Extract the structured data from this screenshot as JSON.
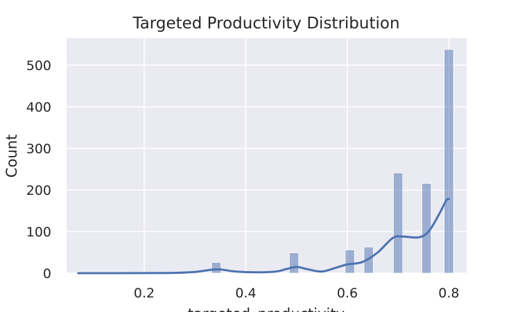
{
  "chart_data": {
    "type": "histogram",
    "title": "Targeted Productivity Distribution",
    "xlabel": "targeted_productivity",
    "ylabel": "Count",
    "xlim": [
      0.047,
      0.835
    ],
    "ylim": [
      0,
      565
    ],
    "xticks": [
      0.2,
      0.4,
      0.6,
      0.8
    ],
    "xtick_labels": [
      "0.2",
      "0.4",
      "0.6",
      "0.8"
    ],
    "yticks": [
      0,
      100,
      200,
      300,
      400,
      500
    ],
    "ytick_labels": [
      "0",
      "100",
      "200",
      "300",
      "400",
      "500"
    ],
    "grid": true,
    "bin_width": 0.0183,
    "bins": [
      {
        "x": 0.342,
        "count": 26
      },
      {
        "x": 0.495,
        "count": 49
      },
      {
        "x": 0.605,
        "count": 56
      },
      {
        "x": 0.642,
        "count": 63
      },
      {
        "x": 0.7,
        "count": 241
      },
      {
        "x": 0.756,
        "count": 216
      },
      {
        "x": 0.8,
        "count": 538
      }
    ],
    "kde": {
      "x": [
        0.07,
        0.15,
        0.25,
        0.3,
        0.33,
        0.35,
        0.38,
        0.42,
        0.46,
        0.48,
        0.5,
        0.52,
        0.55,
        0.58,
        0.6,
        0.63,
        0.66,
        0.69,
        0.71,
        0.74,
        0.76,
        0.78,
        0.795,
        0.8
      ],
      "y": [
        0,
        0,
        0.5,
        3,
        8,
        9,
        4,
        2,
        4,
        10,
        15,
        10,
        4,
        14,
        21,
        27,
        50,
        85,
        88,
        86,
        100,
        140,
        175,
        178
      ]
    },
    "colors": {
      "background": "#eaeaf2",
      "grid": "#ffffff",
      "bar_fill": "#4c72b0",
      "bar_opacity": "0.5",
      "kde_line": "#4c72b0"
    }
  }
}
